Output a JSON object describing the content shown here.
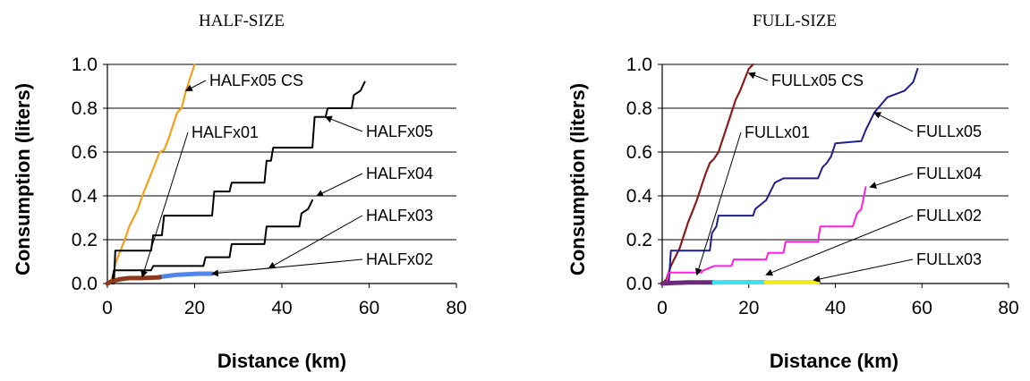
{
  "chart_data": [
    {
      "type": "line",
      "title": "HALF-SIZE",
      "xlabel": "Distance (km)",
      "ylabel": "Consumption (liters)",
      "xlim": [
        0,
        80
      ],
      "ylim": [
        0,
        1.0
      ],
      "xticks": [
        "0",
        "20",
        "40",
        "60",
        "80"
      ],
      "yticks": [
        "0.0",
        "0.2",
        "0.4",
        "0.6",
        "0.8",
        "1.0"
      ],
      "grid": "horizontal",
      "series": [
        {
          "name": "HALFx05 CS",
          "color": "#f5a01a",
          "width": 2.2,
          "points": [
            [
              0,
              0
            ],
            [
              1,
              0.02
            ],
            [
              2,
              0.1
            ],
            [
              3,
              0.15
            ],
            [
              4,
              0.2
            ],
            [
              5,
              0.26
            ],
            [
              6,
              0.3
            ],
            [
              7,
              0.34
            ],
            [
              8,
              0.4
            ],
            [
              9,
              0.45
            ],
            [
              10,
              0.5
            ],
            [
              11,
              0.55
            ],
            [
              12,
              0.6
            ],
            [
              13,
              0.61
            ],
            [
              14,
              0.66
            ],
            [
              15,
              0.72
            ],
            [
              16,
              0.78
            ],
            [
              17,
              0.8
            ],
            [
              18,
              0.88
            ],
            [
              19,
              0.94
            ],
            [
              20,
              1.0
            ]
          ]
        },
        {
          "name": "HALFx05",
          "color": "#000000",
          "width": 2,
          "points": [
            [
              0,
              0
            ],
            [
              1.5,
              0
            ],
            [
              1.8,
              0.15
            ],
            [
              10,
              0.15
            ],
            [
              10.5,
              0.22
            ],
            [
              12.5,
              0.22
            ],
            [
              13,
              0.31
            ],
            [
              24,
              0.31
            ],
            [
              24.5,
              0.42
            ],
            [
              28,
              0.42
            ],
            [
              28.5,
              0.46
            ],
            [
              36,
              0.46
            ],
            [
              36.5,
              0.56
            ],
            [
              37.5,
              0.56
            ],
            [
              38,
              0.62
            ],
            [
              47,
              0.62
            ],
            [
              47.5,
              0.76
            ],
            [
              50,
              0.76
            ],
            [
              50.5,
              0.8
            ],
            [
              56,
              0.8
            ],
            [
              56.5,
              0.86
            ],
            [
              58,
              0.88
            ],
            [
              59,
              0.92
            ]
          ]
        },
        {
          "name": "HALFx04",
          "color": "#000000",
          "width": 2,
          "points": [
            [
              0,
              0
            ],
            [
              1,
              0
            ],
            [
              1.5,
              0.06
            ],
            [
              10,
              0.06
            ],
            [
              10.5,
              0.08
            ],
            [
              22,
              0.08
            ],
            [
              22.5,
              0.12
            ],
            [
              28,
              0.12
            ],
            [
              28.5,
              0.18
            ],
            [
              36,
              0.18
            ],
            [
              36.5,
              0.26
            ],
            [
              44,
              0.26
            ],
            [
              44.5,
              0.32
            ],
            [
              46,
              0.34
            ],
            [
              47,
              0.38
            ]
          ]
        },
        {
          "name": "HALFx03",
          "color": "#bbbbbb",
          "width": 1.5,
          "points": [
            [
              24,
              0.045
            ],
            [
              26,
              0.055
            ],
            [
              28,
              0.06
            ],
            [
              30,
              0.062
            ],
            [
              34,
              0.065
            ],
            [
              37,
              0.07
            ]
          ]
        },
        {
          "name": "HALFx02",
          "color": "#4f86e8",
          "width": 5,
          "points": [
            [
              12,
              0.03
            ],
            [
              14,
              0.035
            ],
            [
              16,
              0.04
            ],
            [
              18,
              0.042
            ],
            [
              21,
              0.045
            ],
            [
              24,
              0.045
            ]
          ]
        },
        {
          "name": "HALFx01",
          "color": "#8b3a1e",
          "width": 5,
          "points": [
            [
              0,
              0
            ],
            [
              1,
              0.01
            ],
            [
              3,
              0.02
            ],
            [
              5,
              0.025
            ],
            [
              8,
              0.025
            ],
            [
              12,
              0.028
            ]
          ]
        }
      ],
      "annotations": [
        {
          "text": "HALFx05 CS",
          "target": [
            18,
            0.88
          ]
        },
        {
          "text": "HALFx01",
          "target": [
            8,
            0.03
          ]
        },
        {
          "text": "HALFx05",
          "target": [
            50,
            0.76
          ]
        },
        {
          "text": "HALFx04",
          "target": [
            48,
            0.4
          ]
        },
        {
          "text": "HALFx03",
          "target": [
            37,
            0.07
          ]
        },
        {
          "text": "HALFx02",
          "target": [
            24,
            0.045
          ]
        }
      ]
    },
    {
      "type": "line",
      "title": "FULL-SIZE",
      "xlabel": "Distance (km)",
      "ylabel": "Consumption (liters)",
      "xlim": [
        0,
        80
      ],
      "ylim": [
        0,
        1.0
      ],
      "xticks": [
        "0",
        "20",
        "40",
        "60",
        "80"
      ],
      "yticks": [
        "0.0",
        "0.2",
        "0.4",
        "0.6",
        "0.8",
        "1.0"
      ],
      "grid": "horizontal",
      "series": [
        {
          "name": "FULLx05 CS",
          "color": "#8b1a1a",
          "width": 2.2,
          "points": [
            [
              0,
              0
            ],
            [
              1,
              0.02
            ],
            [
              2,
              0.08
            ],
            [
              3,
              0.12
            ],
            [
              4,
              0.16
            ],
            [
              5,
              0.22
            ],
            [
              6,
              0.28
            ],
            [
              7,
              0.33
            ],
            [
              8,
              0.38
            ],
            [
              9,
              0.44
            ],
            [
              10,
              0.5
            ],
            [
              11,
              0.55
            ],
            [
              12,
              0.57
            ],
            [
              13,
              0.6
            ],
            [
              14,
              0.66
            ],
            [
              15,
              0.72
            ],
            [
              16,
              0.78
            ],
            [
              17,
              0.84
            ],
            [
              18,
              0.88
            ],
            [
              19,
              0.93
            ],
            [
              20,
              0.98
            ],
            [
              21,
              1.0
            ]
          ]
        },
        {
          "name": "FULLx05",
          "color": "#1f1f8f",
          "width": 2,
          "points": [
            [
              0,
              0
            ],
            [
              1.5,
              0
            ],
            [
              2,
              0.15
            ],
            [
              11,
              0.15
            ],
            [
              11.5,
              0.23
            ],
            [
              12.5,
              0.26
            ],
            [
              13,
              0.31
            ],
            [
              21,
              0.31
            ],
            [
              21.5,
              0.34
            ],
            [
              24,
              0.38
            ],
            [
              26,
              0.46
            ],
            [
              28,
              0.48
            ],
            [
              36,
              0.48
            ],
            [
              37,
              0.53
            ],
            [
              38,
              0.55
            ],
            [
              39,
              0.58
            ],
            [
              40,
              0.64
            ],
            [
              46,
              0.65
            ],
            [
              47,
              0.7
            ],
            [
              49,
              0.78
            ],
            [
              52,
              0.85
            ],
            [
              56,
              0.88
            ],
            [
              58,
              0.92
            ],
            [
              59,
              0.98
            ]
          ]
        },
        {
          "name": "FULLx04",
          "color": "#ff1fe0",
          "width": 2,
          "points": [
            [
              0,
              0
            ],
            [
              1,
              0
            ],
            [
              1.5,
              0.05
            ],
            [
              9,
              0.05
            ],
            [
              9.5,
              0.06
            ],
            [
              12,
              0.08
            ],
            [
              16,
              0.08
            ],
            [
              16.5,
              0.11
            ],
            [
              24,
              0.11
            ],
            [
              24.5,
              0.14
            ],
            [
              28,
              0.14
            ],
            [
              28.5,
              0.19
            ],
            [
              36,
              0.19
            ],
            [
              36.5,
              0.26
            ],
            [
              44,
              0.26
            ],
            [
              45,
              0.32
            ],
            [
              46,
              0.34
            ],
            [
              47,
              0.44
            ]
          ]
        },
        {
          "name": "FULLx01",
          "color": "#6b2a7a",
          "width": 5,
          "points": [
            [
              0,
              0
            ],
            [
              3,
              0.003
            ],
            [
              6,
              0.005
            ],
            [
              9,
              0.005
            ],
            [
              12,
              0.005
            ]
          ]
        },
        {
          "name": "FULLx02",
          "color": "#3de0f0",
          "width": 5,
          "points": [
            [
              12,
              0.005
            ],
            [
              16,
              0.006
            ],
            [
              20,
              0.006
            ],
            [
              24,
              0.006
            ]
          ]
        },
        {
          "name": "FULLx03",
          "color": "#f5ec1a",
          "width": 5,
          "points": [
            [
              24,
              0.006
            ],
            [
              28,
              0.006
            ],
            [
              32,
              0.006
            ],
            [
              36,
              0.006
            ]
          ]
        }
      ],
      "annotations": [
        {
          "text": "FULLx05 CS",
          "target": [
            20,
            0.96
          ]
        },
        {
          "text": "FULLx01",
          "target": [
            8,
            0.04
          ]
        },
        {
          "text": "FULLx05",
          "target": [
            49,
            0.78
          ]
        },
        {
          "text": "FULLx04",
          "target": [
            48,
            0.44
          ]
        },
        {
          "text": "FULLx02",
          "target": [
            24,
            0.04
          ]
        },
        {
          "text": "FULLx03",
          "target": [
            35,
            0.015
          ]
        }
      ]
    }
  ]
}
